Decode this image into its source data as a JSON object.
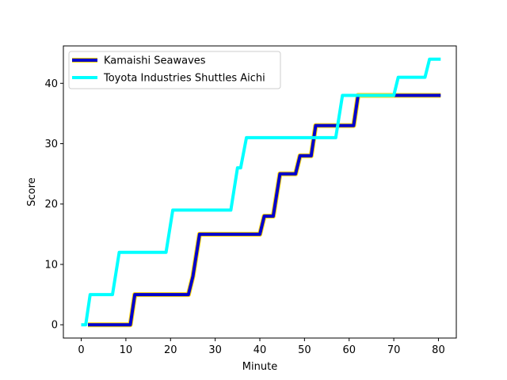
{
  "chart_data": {
    "type": "line",
    "title": "",
    "xlabel": "Minute",
    "ylabel": "Score",
    "xlim": [
      -4,
      84
    ],
    "ylim": [
      -2.2,
      46.2
    ],
    "xticks": [
      0,
      10,
      20,
      30,
      40,
      50,
      60,
      70,
      80
    ],
    "yticks": [
      0,
      10,
      20,
      30,
      40
    ],
    "legend": "upper-left",
    "grid": false,
    "series": [
      {
        "name": "Kamaishi Seawaves",
        "color": "#0000cd",
        "edge_color": "#ffd700",
        "points": [
          [
            1.5,
            0
          ],
          [
            11,
            0
          ],
          [
            12,
            5
          ],
          [
            24,
            5
          ],
          [
            25,
            8
          ],
          [
            26.5,
            15
          ],
          [
            40,
            15
          ],
          [
            41,
            18
          ],
          [
            43,
            18
          ],
          [
            44.5,
            25
          ],
          [
            48,
            25
          ],
          [
            49,
            28
          ],
          [
            51.5,
            28
          ],
          [
            52.5,
            33
          ],
          [
            61,
            33
          ],
          [
            62,
            38
          ],
          [
            80.5,
            38
          ]
        ]
      },
      {
        "name": "Toyota Industries Shuttles Aichi",
        "color": "#00ffff",
        "points": [
          [
            0,
            0
          ],
          [
            1,
            0
          ],
          [
            2,
            5
          ],
          [
            7,
            5
          ],
          [
            8.5,
            12
          ],
          [
            19,
            12
          ],
          [
            20.5,
            19
          ],
          [
            33.5,
            19
          ],
          [
            35,
            26
          ],
          [
            35.7,
            26
          ],
          [
            37,
            31
          ],
          [
            57,
            31
          ],
          [
            58.5,
            38
          ],
          [
            70,
            38
          ],
          [
            71,
            41
          ],
          [
            77,
            41
          ],
          [
            78,
            44
          ],
          [
            80.5,
            44
          ]
        ]
      }
    ]
  }
}
